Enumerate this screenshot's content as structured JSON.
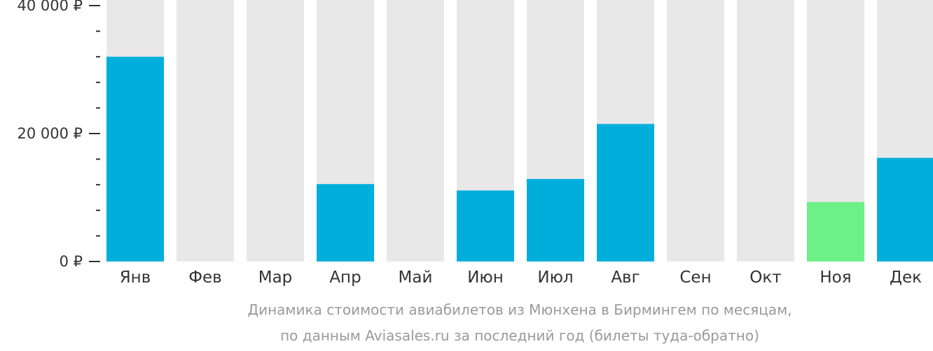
{
  "chart_data": {
    "type": "bar",
    "categories": [
      "Янв",
      "Фев",
      "Мар",
      "Апр",
      "Май",
      "Июн",
      "Июл",
      "Авг",
      "Сен",
      "Окт",
      "Ноя",
      "Дек"
    ],
    "values": [
      32000,
      null,
      null,
      12100,
      null,
      11100,
      12900,
      21500,
      null,
      null,
      9300,
      16200
    ],
    "highlight_index": 10,
    "ylim": [
      0,
      40000
    ],
    "yticks": [
      0,
      20000,
      40000
    ],
    "ytick_labels": [
      "0 ₽",
      "20 000 ₽",
      "40 000 ₽"
    ],
    "minor_ticks_between_labels": 4,
    "caption": [
      "Динамика стоимости авиабилетов из Мюнхена в Бирмингем по месяцам,",
      "по данным Aviasales.ru за последний год (билеты туда-обратно)"
    ],
    "colors": {
      "bar": "#00aedb",
      "highlight": "#6ef089",
      "background_bar": "#e8e8e8",
      "axis": "#333333",
      "caption": "#9a9a9a"
    }
  }
}
